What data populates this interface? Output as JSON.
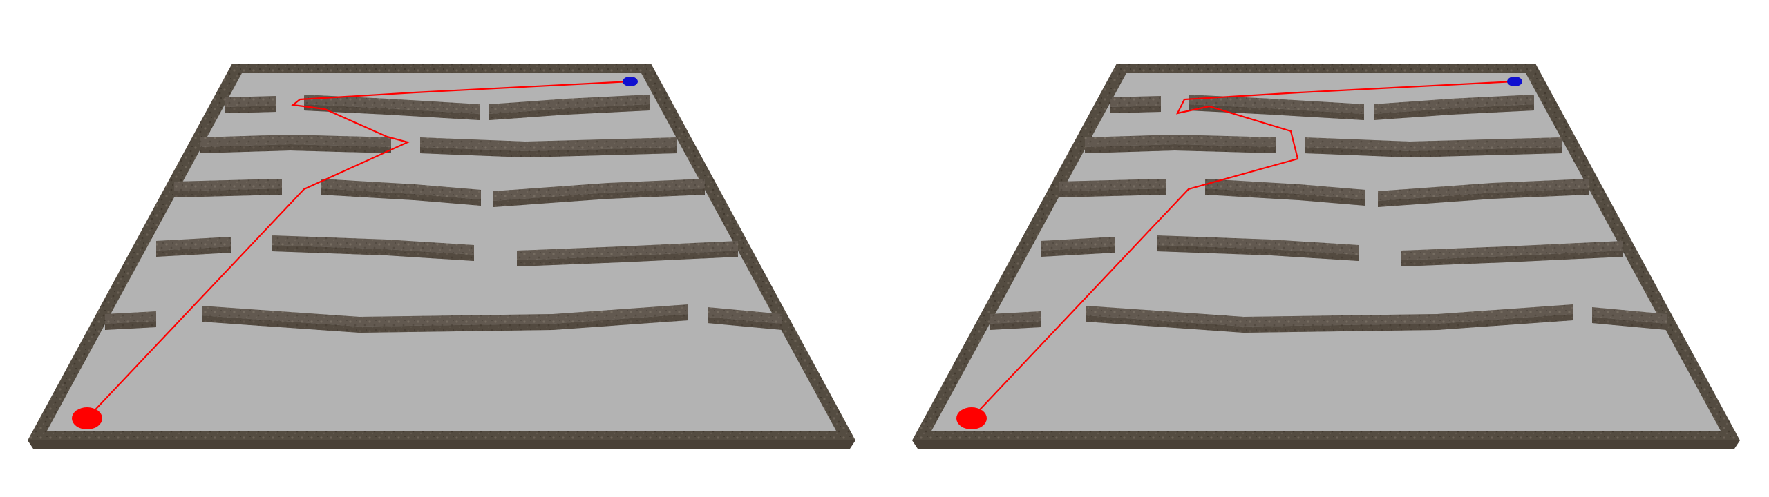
{
  "colors": {
    "background": "#ffffff",
    "floor": "#b3b3b3",
    "wall_top": "#6d655b",
    "wall_side": "#4a4137",
    "wall_dark": "#3a3229",
    "path": "#ff0000",
    "start_marker": "#ff0000",
    "goal_marker": "#1010d0"
  },
  "panels": [
    {
      "id": "left",
      "icons": {
        "start": "red-start-disc",
        "goal": "blue-goal-disc"
      }
    },
    {
      "id": "right",
      "icons": {
        "start": "red-start-disc",
        "goal": "blue-goal-disc"
      }
    }
  ]
}
